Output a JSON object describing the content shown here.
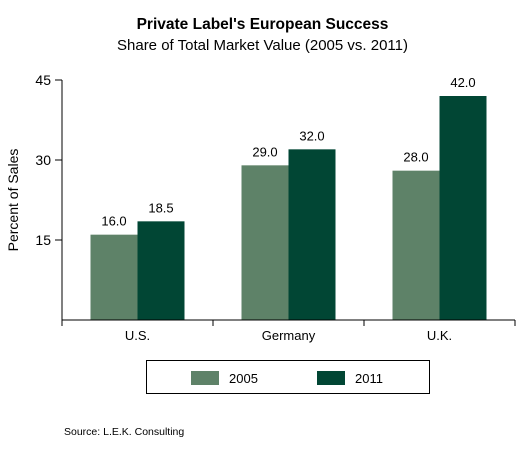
{
  "chart_data": {
    "type": "bar",
    "title": "Private Label's European Success",
    "subtitle": "Share of Total Market Value (2005 vs. 2011)",
    "xlabel": "",
    "ylabel": "Percent of Sales",
    "categories": [
      "U.S.",
      "Germany",
      "U.K."
    ],
    "series": [
      {
        "name": "2005",
        "color": "#5e8268",
        "values": [
          16.0,
          29.0,
          28.0
        ]
      },
      {
        "name": "2011",
        "color": "#014634",
        "values": [
          18.5,
          32.0,
          42.0
        ]
      }
    ],
    "value_labels": {
      "2005": [
        "16.0",
        "29.0",
        "28.0"
      ],
      "2011": [
        "18.5",
        "32.0",
        "42.0"
      ]
    },
    "ylim": [
      0,
      45
    ],
    "yticks": [
      15,
      30,
      45
    ],
    "ytick_labels": [
      "15",
      "30",
      "45"
    ],
    "grid": false,
    "legend_position": "bottom"
  },
  "source": "Source: L.E.K. Consulting"
}
